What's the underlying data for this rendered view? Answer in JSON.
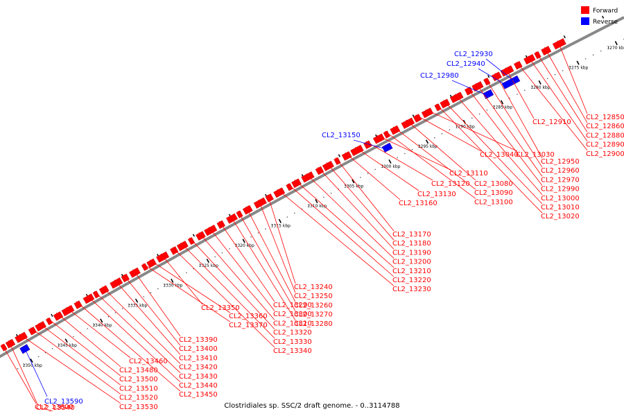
{
  "caption": "Clostridiales sp. SSC/2 draft genome. - 0..3114788",
  "colors": {
    "forward": "#ff0000",
    "reverse": "#0000ff",
    "backbone": "#888888"
  },
  "legend": [
    {
      "label": "Forward",
      "color": "#ff0000"
    },
    {
      "label": "Reverse",
      "color": "#0000ff"
    }
  ],
  "ticks": [
    {
      "kbp": 1270,
      "label": "1270 kbp"
    },
    {
      "kbp": 1275,
      "label": "1275 kbp"
    },
    {
      "kbp": 1280,
      "label": "1280 kbp"
    },
    {
      "kbp": 1285,
      "label": "1285 kbp"
    },
    {
      "kbp": 1290,
      "label": "1290 kbp"
    },
    {
      "kbp": 1295,
      "label": "1295 kbp"
    },
    {
      "kbp": 1300,
      "label": "1300 kbp"
    },
    {
      "kbp": 1305,
      "label": "1305 kbp"
    },
    {
      "kbp": 1310,
      "label": "1310 kbp"
    },
    {
      "kbp": 1315,
      "label": "1315 kbp"
    },
    {
      "kbp": 1320,
      "label": "1320 kbp"
    },
    {
      "kbp": 1325,
      "label": "1325 kbp"
    },
    {
      "kbp": 1330,
      "label": "1330 kbp"
    },
    {
      "kbp": 1335,
      "label": "1335 kbp"
    },
    {
      "kbp": 1340,
      "label": "1340 kbp"
    },
    {
      "kbp": 1345,
      "label": "1345 kbp"
    },
    {
      "kbp": 1350,
      "label": "1350 kbp"
    }
  ],
  "forward_labels": [
    "CL2_12850",
    "CL2_12860",
    "CL2_12880",
    "CL2_12890",
    "CL2_12900",
    "CL2_12910",
    "CL2_12950",
    "CL2_12960",
    "CL2_12970",
    "CL2_12990",
    "CL2_13000",
    "CL2_13010",
    "CL2_13020",
    "CL2_13030",
    "CL2_13040",
    "CL2_13080",
    "CL2_13090",
    "CL2_13100",
    "CL2_13110",
    "CL2_13120",
    "CL2_13130",
    "CL2_13160",
    "CL2_13170",
    "CL2_13180",
    "CL2_13190",
    "CL2_13200",
    "CL2_13210",
    "CL2_13220",
    "CL2_13230",
    "CL2_13240",
    "CL2_13250",
    "CL2_13260",
    "CL2_13270",
    "CL2_13280",
    "CL2_13290",
    "CL2_13300",
    "CL2_13310",
    "CL2_13320",
    "CL2_13330",
    "CL2_13340",
    "CL2_13350",
    "CL2_13360",
    "CL2_13370",
    "CL2_13390",
    "CL2_13400",
    "CL2_13410",
    "CL2_13420",
    "CL2_13430",
    "CL2_13440",
    "CL2_13450",
    "CL2_13460",
    "CL2_13480",
    "CL2_13500",
    "CL2_13510",
    "CL2_13520",
    "CL2_13530",
    "CL2_13540",
    "CL2_13600"
  ],
  "reverse_labels": [
    "CL2_12930",
    "CL2_12940",
    "CL2_12980",
    "CL2_13150",
    "CL2_13590"
  ]
}
